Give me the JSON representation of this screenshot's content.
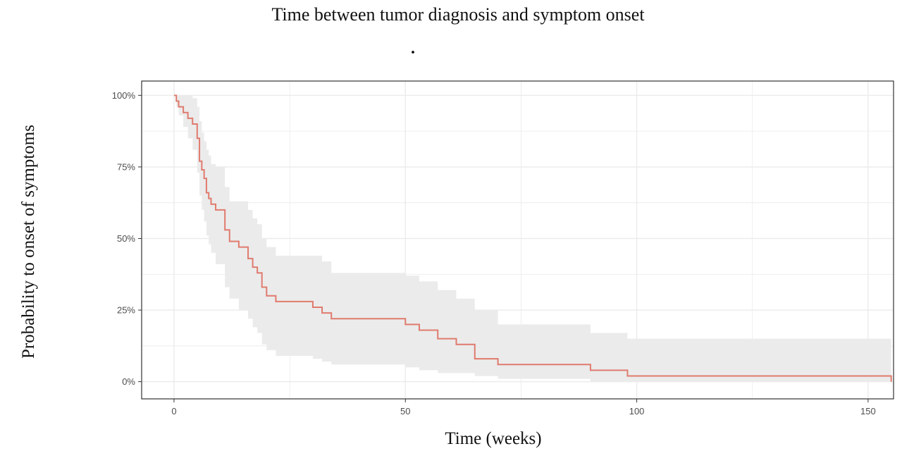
{
  "page": {
    "title": "Time between tumor diagnosis and symptom onset",
    "subtitle": "."
  },
  "chart_data": {
    "type": "line",
    "step": true,
    "title": "Time between tumor diagnosis and symptom onset",
    "subtitle": ".",
    "xlabel": "Time (weeks)",
    "ylabel": "Probability to onset of symptoms",
    "xlim": [
      -7,
      155.5
    ],
    "ylim": [
      -0.06,
      1.05
    ],
    "x_ticks": [
      0,
      50,
      100,
      150
    ],
    "x_tick_labels": [
      "0",
      "50",
      "100",
      "150"
    ],
    "y_ticks": [
      0,
      0.25,
      0.5,
      0.75,
      1.0
    ],
    "y_tick_labels": [
      "0%",
      "25%",
      "50%",
      "75%",
      "100%"
    ],
    "grid": true,
    "legend": "none",
    "colors": {
      "line": "#e07b6e",
      "band": "#ebebeb",
      "grid": "#ebebeb",
      "border": "#333333"
    },
    "series": [
      {
        "x": [
          0,
          0.5,
          1,
          2,
          3,
          4,
          5,
          5.5,
          6,
          6.5,
          7,
          7.5,
          8,
          9,
          11,
          12,
          14,
          16,
          17,
          18,
          19,
          20,
          22,
          30,
          32,
          34,
          50,
          53,
          57,
          61,
          65,
          70,
          90,
          98,
          155
        ],
        "y": [
          1.0,
          0.98,
          0.96,
          0.94,
          0.92,
          0.9,
          0.85,
          0.77,
          0.74,
          0.71,
          0.66,
          0.64,
          0.62,
          0.6,
          0.53,
          0.49,
          0.47,
          0.43,
          0.4,
          0.38,
          0.33,
          0.3,
          0.28,
          0.26,
          0.24,
          0.22,
          0.2,
          0.18,
          0.15,
          0.13,
          0.08,
          0.06,
          0.04,
          0.02,
          0.0
        ],
        "lower": [
          1.0,
          0.96,
          0.93,
          0.89,
          0.85,
          0.81,
          0.73,
          0.65,
          0.6,
          0.56,
          0.51,
          0.48,
          0.45,
          0.41,
          0.33,
          0.29,
          0.25,
          0.22,
          0.19,
          0.17,
          0.13,
          0.11,
          0.09,
          0.08,
          0.07,
          0.06,
          0.05,
          0.04,
          0.03,
          0.03,
          0.02,
          0.01,
          0.0,
          0.0,
          0.0
        ],
        "upper": [
          1.0,
          1.0,
          1.0,
          1.0,
          1.0,
          0.99,
          0.96,
          0.91,
          0.87,
          0.84,
          0.81,
          0.79,
          0.76,
          0.75,
          0.68,
          0.63,
          0.63,
          0.6,
          0.57,
          0.55,
          0.5,
          0.47,
          0.44,
          0.44,
          0.42,
          0.38,
          0.37,
          0.35,
          0.32,
          0.29,
          0.25,
          0.2,
          0.17,
          0.15,
          0.15
        ]
      }
    ]
  }
}
